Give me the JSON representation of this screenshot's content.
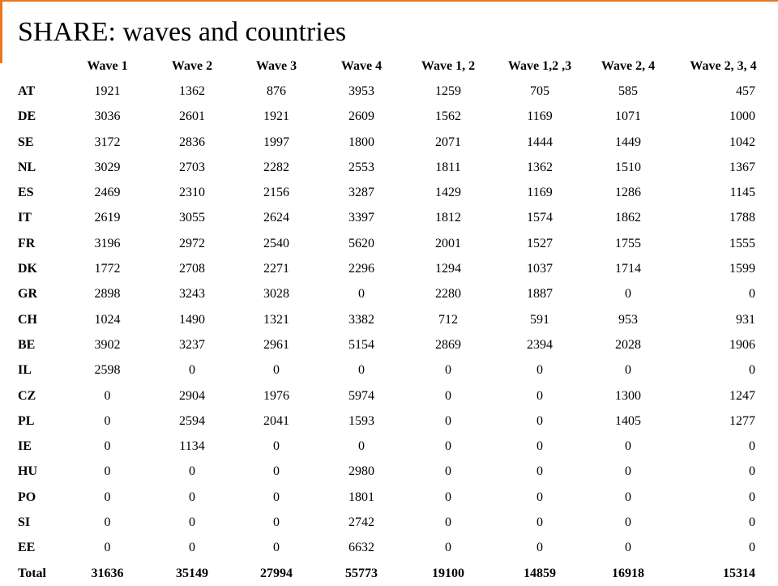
{
  "title": "SHARE: waves and countries",
  "accent_color": "#e8771e",
  "table": {
    "columns": [
      "Wave 1",
      "Wave 2",
      "Wave 3",
      "Wave 4",
      "Wave 1, 2",
      "Wave 1,2 ,3",
      "Wave 2, 4",
      "Wave 2, 3, 4"
    ],
    "rows": [
      {
        "country": "AT",
        "values": [
          "1921",
          "1362",
          "876",
          "3953",
          "1259",
          "705",
          "585",
          "457"
        ]
      },
      {
        "country": "DE",
        "values": [
          "3036",
          "2601",
          "1921",
          "2609",
          "1562",
          "1169",
          "1071",
          "1000"
        ]
      },
      {
        "country": "SE",
        "values": [
          "3172",
          "2836",
          "1997",
          "1800",
          "2071",
          "1444",
          "1449",
          "1042"
        ]
      },
      {
        "country": "NL",
        "values": [
          "3029",
          "2703",
          "2282",
          "2553",
          "1811",
          "1362",
          "1510",
          "1367"
        ]
      },
      {
        "country": "ES",
        "values": [
          "2469",
          "2310",
          "2156",
          "3287",
          "1429",
          "1169",
          "1286",
          "1145"
        ]
      },
      {
        "country": "IT",
        "values": [
          "2619",
          "3055",
          "2624",
          "3397",
          "1812",
          "1574",
          "1862",
          "1788"
        ]
      },
      {
        "country": "FR",
        "values": [
          "3196",
          "2972",
          "2540",
          "5620",
          "2001",
          "1527",
          "1755",
          "1555"
        ]
      },
      {
        "country": "DK",
        "values": [
          "1772",
          "2708",
          "2271",
          "2296",
          "1294",
          "1037",
          "1714",
          "1599"
        ]
      },
      {
        "country": "GR",
        "values": [
          "2898",
          "3243",
          "3028",
          "0",
          "2280",
          "1887",
          "0",
          "0"
        ]
      },
      {
        "country": "CH",
        "values": [
          "1024",
          "1490",
          "1321",
          "3382",
          "712",
          "591",
          "953",
          "931"
        ]
      },
      {
        "country": "BE",
        "values": [
          "3902",
          "3237",
          "2961",
          "5154",
          "2869",
          "2394",
          "2028",
          "1906"
        ]
      },
      {
        "country": "IL",
        "values": [
          "2598",
          "0",
          "0",
          "0",
          "0",
          "0",
          "0",
          "0"
        ]
      },
      {
        "country": "CZ",
        "values": [
          "0",
          "2904",
          "1976",
          "5974",
          "0",
          "0",
          "1300",
          "1247"
        ]
      },
      {
        "country": "PL",
        "values": [
          "0",
          "2594",
          "2041",
          "1593",
          "0",
          "0",
          "1405",
          "1277"
        ]
      },
      {
        "country": "IE",
        "values": [
          "0",
          "1134",
          "0",
          "0",
          "0",
          "0",
          "0",
          "0"
        ]
      },
      {
        "country": "HU",
        "values": [
          "0",
          "0",
          "0",
          "2980",
          "0",
          "0",
          "0",
          "0"
        ]
      },
      {
        "country": "PO",
        "values": [
          "0",
          "0",
          "0",
          "1801",
          "0",
          "0",
          "0",
          "0"
        ]
      },
      {
        "country": "SI",
        "values": [
          "0",
          "0",
          "0",
          "2742",
          "0",
          "0",
          "0",
          "0"
        ]
      },
      {
        "country": "EE",
        "values": [
          "0",
          "0",
          "0",
          "6632",
          "0",
          "0",
          "0",
          "0"
        ]
      }
    ],
    "total": {
      "label": "Total",
      "values": [
        "31636",
        "35149",
        "27994",
        "55773",
        "19100",
        "14859",
        "16918",
        "15314"
      ]
    }
  }
}
